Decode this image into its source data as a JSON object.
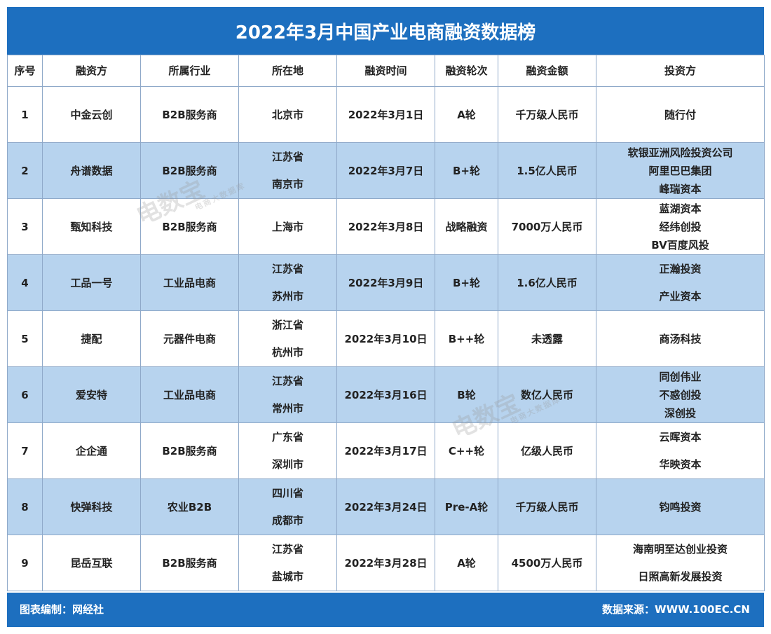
{
  "title": "2022年3月中国产业电商融资数据榜",
  "headers": [
    "序号",
    "融资方",
    "所属行业",
    "所在地",
    "融资时间",
    "融资轮次",
    "融资金额",
    "投资方"
  ],
  "rows": [
    {
      "no": "1",
      "company": "中金云创",
      "industry": "B2B服务商",
      "location": [
        "北京市"
      ],
      "date": "2022年3月1日",
      "round": "A轮",
      "amount": "千万级人民币",
      "investors": [
        "随行付"
      ]
    },
    {
      "no": "2",
      "company": "舟谱数据",
      "industry": "B2B服务商",
      "location": [
        "江苏省",
        "南京市"
      ],
      "date": "2022年3月7日",
      "round": "B+轮",
      "amount": "1.5亿人民币",
      "investors": [
        "软银亚洲风险投资公司",
        "阿里巴巴集团",
        "峰瑞资本"
      ]
    },
    {
      "no": "3",
      "company": "甄知科技",
      "industry": "B2B服务商",
      "location": [
        "上海市"
      ],
      "date": "2022年3月8日",
      "round": "战略融资",
      "amount": "7000万人民币",
      "investors": [
        "蓝湖资本",
        "经纬创投",
        "BV百度风投"
      ]
    },
    {
      "no": "4",
      "company": "工品一号",
      "industry": "工业品电商",
      "location": [
        "江苏省",
        "苏州市"
      ],
      "date": "2022年3月9日",
      "round": "B+轮",
      "amount": "1.6亿人民币",
      "investors": [
        "正瀚投资",
        "产业资本"
      ]
    },
    {
      "no": "5",
      "company": "捷配",
      "industry": "元器件电商",
      "location": [
        "浙江省",
        "杭州市"
      ],
      "date": "2022年3月10日",
      "round": "B++轮",
      "amount": "未透露",
      "investors": [
        "商汤科技"
      ]
    },
    {
      "no": "6",
      "company": "爱安特",
      "industry": "工业品电商",
      "location": [
        "江苏省",
        "常州市"
      ],
      "date": "2022年3月16日",
      "round": "B轮",
      "amount": "数亿人民币",
      "investors": [
        "同创伟业",
        "不惑创投",
        "深创投"
      ]
    },
    {
      "no": "7",
      "company": "企企通",
      "industry": "B2B服务商",
      "location": [
        "广东省",
        "深圳市"
      ],
      "date": "2022年3月17日",
      "round": "C++轮",
      "amount": "亿级人民币",
      "investors": [
        "云晖资本",
        "华映资本"
      ]
    },
    {
      "no": "8",
      "company": "快弹科技",
      "industry": "农业B2B",
      "location": [
        "四川省",
        "成都市"
      ],
      "date": "2022年3月24日",
      "round": "Pre-A轮",
      "amount": "千万级人民币",
      "investors": [
        "钧鸣投资"
      ]
    },
    {
      "no": "9",
      "company": "昆岳互联",
      "industry": "B2B服务商",
      "location": [
        "江苏省",
        "盐城市"
      ],
      "date": "2022年3月28日",
      "round": "A轮",
      "amount": "4500万人民币",
      "investors": [
        "海南明至达创业投资",
        "日照高新发展投资"
      ]
    }
  ],
  "footer": {
    "left": "图表编制：网经社",
    "right": "数据来源：WWW.100EC.CN"
  },
  "watermark": {
    "main": "电数宝",
    "sub": "电商大数据库"
  },
  "colors": {
    "brand_blue": "#1d6fbf",
    "alt_row": "#b7d3ee",
    "border": "#8fa9c9"
  }
}
